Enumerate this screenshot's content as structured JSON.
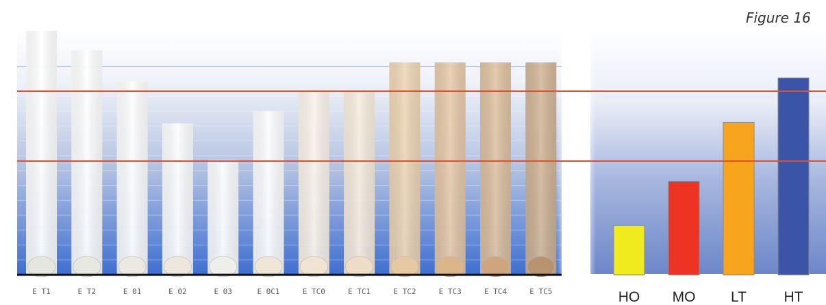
{
  "figure_label": "Figure 16",
  "chart_data": [
    {
      "type": "bar",
      "categories": [
        "E T1",
        "E T2",
        "E 01",
        "E 02",
        "E 03",
        "E 0C1",
        "E TC0",
        "E TC1",
        "E TC2",
        "E TC3",
        "E TC4",
        "E TC5"
      ],
      "values": [
        100,
        92,
        79,
        62,
        47,
        67,
        75,
        75,
        87,
        87,
        87,
        87
      ],
      "ylim": [
        0,
        100
      ],
      "grid": true,
      "swatch_colors": [
        "#e6e6e0",
        "#e8e8e2",
        "#ebe9e2",
        "#ede7dd",
        "#eeeeea",
        "#f0e6d8",
        "#f1e4d2",
        "#efdcc6",
        "#e8c7a3",
        "#dcb58b",
        "#cfa57e",
        "#b89370"
      ],
      "bar_colors": [
        "#ffffff",
        "#ffffff",
        "#ffffff",
        "#ffffff",
        "#ffffff",
        "#ffffff",
        "#fbf3e8",
        "#f8ecdb",
        "#edd3b0",
        "#e5c6a2",
        "#dcbd9a",
        "#cfb08f"
      ]
    },
    {
      "type": "bar",
      "categories": [
        "HO",
        "MO",
        "LT",
        "HT"
      ],
      "values": [
        20,
        38,
        62,
        80
      ],
      "ylim": [
        0,
        100
      ],
      "colors": [
        "#f0eb1e",
        "#ee3322",
        "#f7a51c",
        "#3a55a8"
      ]
    }
  ],
  "reference_line_color": "#e0502a"
}
